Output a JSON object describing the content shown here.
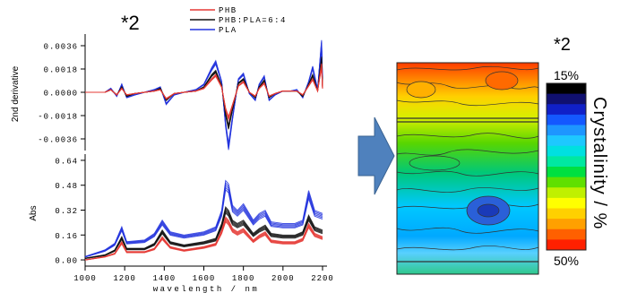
{
  "left_panel": {
    "annotation": "*2",
    "legend": [
      {
        "name": "PHB",
        "color": "#e53935"
      },
      {
        "name": "PHB:PLA=6:4",
        "color": "#111111"
      },
      {
        "name": "PLA",
        "color": "#2233dd"
      }
    ],
    "top_plot": {
      "ylabel": "2nd derivative",
      "yticks": [
        "0.0036",
        "0.0018",
        "0.0000",
        "-0.0018",
        "-0.0036"
      ]
    },
    "bottom_plot": {
      "ylabel": "Abs",
      "yticks": [
        "0.64",
        "0.48",
        "0.32",
        "0.16",
        "0.00"
      ]
    },
    "xticks": [
      "1000",
      "1200",
      "1400",
      "1600",
      "1800",
      "2000",
      "2200"
    ],
    "xlabel": "wavelength / nm"
  },
  "arrow": {
    "color": "#4f81bd"
  },
  "right_panel": {
    "annotation": "*2",
    "colorbar": {
      "top_label": "15%",
      "bottom_label": "50%",
      "title": "Crystalinity / %"
    }
  },
  "chart_data": [
    {
      "type": "line",
      "xlabel": "",
      "ylabel": "2nd derivative",
      "xlim": [
        1000,
        2200
      ],
      "ylim": [
        -0.0045,
        0.0045
      ],
      "series": [
        {
          "name": "PLA",
          "color": "#2233dd",
          "x": [
            1000,
            1100,
            1130,
            1160,
            1185,
            1210,
            1250,
            1300,
            1350,
            1380,
            1410,
            1450,
            1500,
            1560,
            1600,
            1640,
            1660,
            1690,
            1710,
            1725,
            1745,
            1775,
            1800,
            1830,
            1860,
            1880,
            1905,
            1930,
            1960,
            2000,
            2040,
            2070,
            2100,
            2130,
            2150,
            2175,
            2195,
            2200
          ],
          "y": [
            0,
            0,
            0.0003,
            -0.0003,
            0.0006,
            -0.0004,
            -0.0002,
            0,
            0.0002,
            0.0004,
            -0.0009,
            -0.0002,
            0,
            0.0002,
            0.0006,
            0.0018,
            0.0023,
            0.0008,
            -0.0025,
            -0.0042,
            -0.002,
            0.001,
            0.0014,
            -0.0001,
            -0.0006,
            0.0006,
            0.0012,
            -0.0006,
            -0.0002,
            0.0001,
            0.0001,
            0.0002,
            -0.0004,
            0.0008,
            0.0019,
            0.0002,
            0.0038,
            0.0006
          ]
        },
        {
          "name": "PHB:PLA=6:4",
          "color": "#111111",
          "x": [
            1000,
            1100,
            1130,
            1160,
            1185,
            1210,
            1250,
            1300,
            1350,
            1380,
            1410,
            1450,
            1500,
            1560,
            1600,
            1640,
            1660,
            1690,
            1710,
            1725,
            1745,
            1775,
            1800,
            1830,
            1860,
            1880,
            1905,
            1930,
            1960,
            2000,
            2040,
            2070,
            2100,
            2130,
            2150,
            2175,
            2195,
            2200
          ],
          "y": [
            0,
            0,
            0.0002,
            -0.0002,
            0.0004,
            -0.0003,
            -0.0001,
            0,
            0.0001,
            0.0003,
            -0.0006,
            -0.0001,
            0,
            0.0001,
            0.0004,
            0.0013,
            0.0016,
            0.0005,
            -0.0017,
            -0.0027,
            -0.0013,
            0.0007,
            0.001,
            0,
            -0.0004,
            0.0004,
            0.0009,
            -0.0004,
            -0.0001,
            0.0001,
            0.0001,
            0.0001,
            -0.0003,
            0.0006,
            0.0013,
            0.0001,
            0.0026,
            0.0004
          ]
        },
        {
          "name": "PHB",
          "color": "#e53935",
          "x": [
            1000,
            1100,
            1130,
            1160,
            1185,
            1210,
            1250,
            1300,
            1350,
            1380,
            1410,
            1450,
            1500,
            1560,
            1600,
            1640,
            1660,
            1690,
            1710,
            1725,
            1745,
            1775,
            1800,
            1830,
            1860,
            1880,
            1905,
            1930,
            1960,
            2000,
            2040,
            2070,
            2100,
            2130,
            2150,
            2175,
            2195,
            2200
          ],
          "y": [
            0,
            0,
            0.0002,
            -0.0002,
            0.0003,
            -0.0002,
            -0.0001,
            0,
            0.0001,
            0.0002,
            -0.0005,
            -0.0001,
            0,
            0.0001,
            0.0003,
            0.001,
            0.0013,
            0.0004,
            -0.0013,
            -0.002,
            -0.001,
            0.0005,
            0.0008,
            0,
            -0.0003,
            0.0003,
            0.0007,
            -0.0003,
            -0.0001,
            0.0001,
            0.0001,
            0.0001,
            -0.0002,
            0.0005,
            0.001,
            0.0001,
            0.0021,
            0.0003
          ]
        }
      ]
    },
    {
      "type": "line",
      "xlabel": "wavelength / nm",
      "ylabel": "Abs",
      "xlim": [
        1000,
        2200
      ],
      "ylim": [
        -0.04,
        0.68
      ],
      "series": [
        {
          "name": "PLA",
          "color": "#2233dd",
          "x": [
            1000,
            1100,
            1150,
            1185,
            1210,
            1300,
            1350,
            1390,
            1430,
            1500,
            1600,
            1660,
            1690,
            1710,
            1725,
            1745,
            1770,
            1800,
            1850,
            1880,
            1910,
            1940,
            2000,
            2060,
            2100,
            2130,
            2160,
            2200
          ],
          "y": [
            0.02,
            0.06,
            0.1,
            0.2,
            0.11,
            0.12,
            0.16,
            0.24,
            0.17,
            0.15,
            0.17,
            0.2,
            0.3,
            0.48,
            0.46,
            0.33,
            0.3,
            0.34,
            0.24,
            0.28,
            0.3,
            0.23,
            0.22,
            0.22,
            0.24,
            0.42,
            0.3,
            0.28
          ]
        },
        {
          "name": "PHB:PLA=6:4",
          "color": "#111111",
          "x": [
            1000,
            1100,
            1150,
            1185,
            1210,
            1300,
            1350,
            1390,
            1430,
            1500,
            1600,
            1660,
            1690,
            1710,
            1725,
            1745,
            1770,
            1800,
            1850,
            1880,
            1910,
            1940,
            2000,
            2060,
            2100,
            2130,
            2160,
            2200
          ],
          "y": [
            0.01,
            0.03,
            0.06,
            0.14,
            0.07,
            0.07,
            0.1,
            0.18,
            0.11,
            0.09,
            0.11,
            0.13,
            0.22,
            0.32,
            0.3,
            0.24,
            0.22,
            0.24,
            0.16,
            0.19,
            0.21,
            0.16,
            0.15,
            0.15,
            0.17,
            0.27,
            0.2,
            0.18
          ]
        },
        {
          "name": "PHB",
          "color": "#e53935",
          "x": [
            1000,
            1100,
            1150,
            1185,
            1210,
            1300,
            1350,
            1390,
            1430,
            1500,
            1600,
            1660,
            1690,
            1710,
            1725,
            1745,
            1770,
            1800,
            1850,
            1880,
            1910,
            1940,
            2000,
            2060,
            2100,
            2130,
            2160,
            2200
          ],
          "y": [
            0,
            0.02,
            0.04,
            0.11,
            0.05,
            0.05,
            0.07,
            0.14,
            0.08,
            0.06,
            0.08,
            0.1,
            0.18,
            0.26,
            0.24,
            0.19,
            0.17,
            0.19,
            0.12,
            0.15,
            0.17,
            0.12,
            0.11,
            0.11,
            0.13,
            0.22,
            0.16,
            0.14
          ]
        }
      ]
    }
  ]
}
